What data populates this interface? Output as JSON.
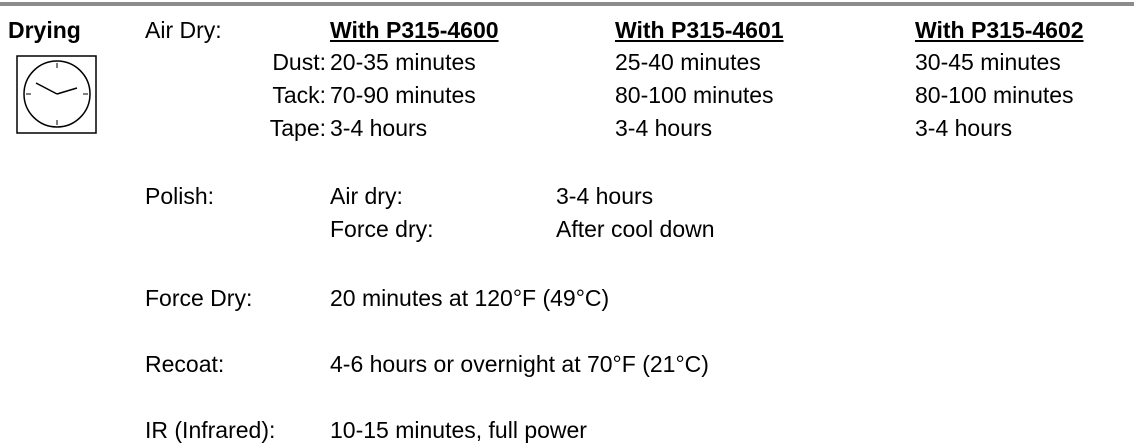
{
  "section": "Drying",
  "air_dry": {
    "label": "Air Dry:",
    "columns": [
      "With P315-4600",
      "With P315-4601",
      "With P315-4602"
    ],
    "rows": [
      {
        "label": "Dust:",
        "values": [
          "20-35 minutes",
          "25-40 minutes",
          "30-45 minutes"
        ]
      },
      {
        "label": "Tack:",
        "values": [
          "70-90 minutes",
          "80-100 minutes",
          "80-100 minutes"
        ]
      },
      {
        "label": "Tape:",
        "values": [
          "3-4 hours",
          "3-4 hours",
          "3-4 hours"
        ]
      }
    ]
  },
  "polish": {
    "label": "Polish:",
    "rows": [
      {
        "label": "Air dry:",
        "value": "3-4 hours"
      },
      {
        "label": "Force dry:",
        "value": "After cool down"
      }
    ]
  },
  "items": [
    {
      "label": "Force Dry:",
      "value": "20 minutes at 120°F (49°C)"
    },
    {
      "label": "Recoat:",
      "value": "4-6 hours or overnight at 70°F (21°C)"
    },
    {
      "label": "IR (Infrared):",
      "value": "10-15 minutes, full power"
    }
  ]
}
